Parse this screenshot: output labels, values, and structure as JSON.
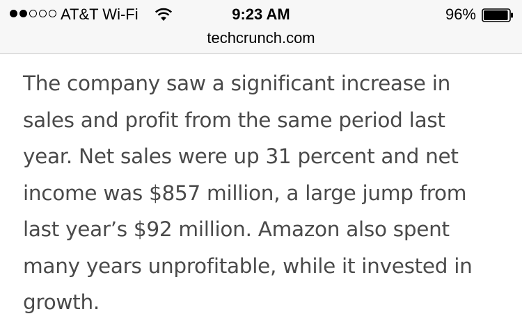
{
  "status_bar": {
    "signal_bars_filled": 2,
    "signal_bars_total": 5,
    "carrier": "AT&T Wi-Fi",
    "wifi_icon": "wifi-icon",
    "time": "9:23 AM",
    "battery_percent": "96%",
    "battery_level": 0.96,
    "battery_icon": "battery-icon"
  },
  "browser": {
    "url": "techcrunch.com"
  },
  "article": {
    "paragraph": "The company saw a significant increase in sales and profit from the same period last year. Net sales were up 31 percent and net income was $857 million, a large jump from last year’s $92 million. Amazon also spent many years unprofitable, while it invested in growth."
  },
  "colors": {
    "chrome_background": "#f7f7f7",
    "text": "#4a4a4a"
  }
}
